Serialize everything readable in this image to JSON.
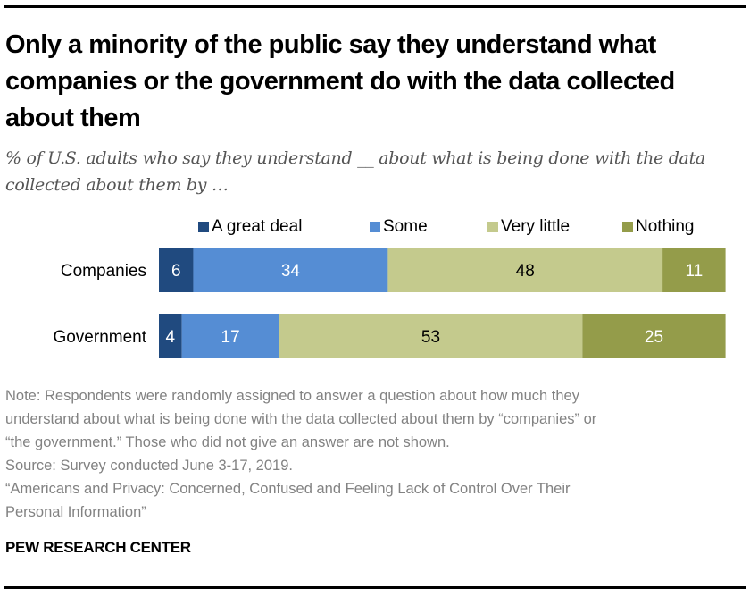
{
  "title": "Only a minority of the public say they understand what companies or the government do with the data collected about them",
  "subtitle": "% of U.S. adults who say they understand __ about what is being done with the data collected about them by …",
  "chart_data": {
    "type": "bar",
    "orientation": "horizontal",
    "stacked": true,
    "title": "Only a minority of the public say they understand what companies or the government do with the data collected about them",
    "subtitle": "% of U.S. adults who say they understand __ about what is being done with the data collected about them by …",
    "categories": [
      "Companies",
      "Government"
    ],
    "series": [
      {
        "name": "A great deal",
        "color": "#204a7f",
        "label_color": "#ffffff",
        "values": [
          6,
          4
        ]
      },
      {
        "name": "Some",
        "color": "#558dd4",
        "label_color": "#ffffff",
        "values": [
          34,
          17
        ]
      },
      {
        "name": "Very little",
        "color": "#c4ca8d",
        "label_color": "#000000",
        "values": [
          48,
          53
        ]
      },
      {
        "name": "Nothing",
        "color": "#949c4a",
        "label_color": "#ffffff",
        "values": [
          11,
          25
        ]
      }
    ],
    "xlim": [
      0,
      100
    ],
    "xlabel": "",
    "ylabel": "",
    "grid": false,
    "legend_position": "top"
  },
  "notes": {
    "note_lines": [
      "Note: Respondents were randomly assigned to answer a question about how much they",
      "understand about what is being done with the data collected about them by “companies” or",
      "“the government.” Those who did not give an answer are not shown."
    ],
    "source": "Source: Survey conducted June 3-17, 2019.",
    "report_lines": [
      "“Americans and Privacy: Concerned, Confused and Feeling Lack of Control Over Their",
      "Personal Information”"
    ]
  },
  "brand": "PEW RESEARCH CENTER"
}
